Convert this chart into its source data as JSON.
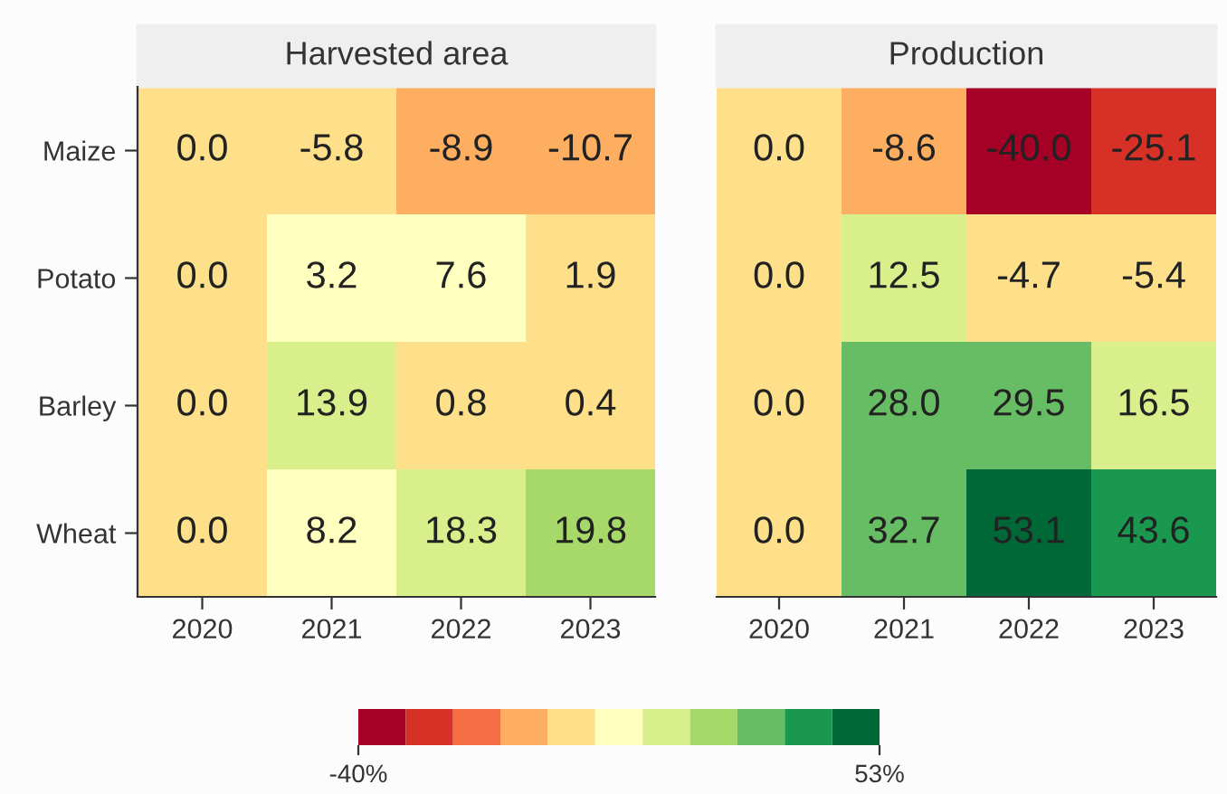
{
  "chart_data": [
    {
      "type": "heatmap",
      "title": "Harvested area",
      "categories": [
        "2020",
        "2021",
        "2022",
        "2023"
      ],
      "y_categories": [
        "Maize",
        "Potato",
        "Barley",
        "Wheat"
      ],
      "cells": [
        [
          0.0,
          -5.8,
          -8.9,
          -10.7
        ],
        [
          0.0,
          3.2,
          7.6,
          1.9
        ],
        [
          0.0,
          13.9,
          0.8,
          0.4
        ],
        [
          0.0,
          8.2,
          18.3,
          19.8
        ]
      ],
      "cell_labels": [
        [
          "0.0",
          "-5.8",
          "-8.9",
          "-10.7"
        ],
        [
          "0.0",
          "3.2",
          "7.6",
          "1.9"
        ],
        [
          "0.0",
          "13.9",
          "0.8",
          "0.4"
        ],
        [
          "0.0",
          "8.2",
          "18.3",
          "19.8"
        ]
      ],
      "clim": [
        -40,
        53
      ],
      "cticks": [
        {
          "value": -40,
          "label": "-40%"
        },
        {
          "value": 53,
          "label": "53%"
        }
      ]
    },
    {
      "type": "heatmap",
      "title": "Production",
      "categories": [
        "2020",
        "2021",
        "2022",
        "2023"
      ],
      "y_categories": [
        null,
        null,
        null,
        null
      ],
      "tick_labels": "x",
      "cells": [
        [
          0.0,
          -8.6,
          -40.0,
          -25.1
        ],
        [
          0.0,
          12.5,
          -4.7,
          -5.4
        ],
        [
          0.0,
          28.0,
          29.5,
          16.5
        ],
        [
          0.0,
          32.7,
          53.1,
          43.6
        ]
      ],
      "cell_labels": [
        [
          "0.0",
          "-8.6",
          "-40.0",
          "-25.1"
        ],
        [
          "0.0",
          "12.5",
          "-4.7",
          "-5.4"
        ],
        [
          "0.0",
          "28.0",
          "29.5",
          "16.5"
        ],
        [
          "0.0",
          "32.7",
          "53.1",
          "43.6"
        ]
      ]
    }
  ]
}
